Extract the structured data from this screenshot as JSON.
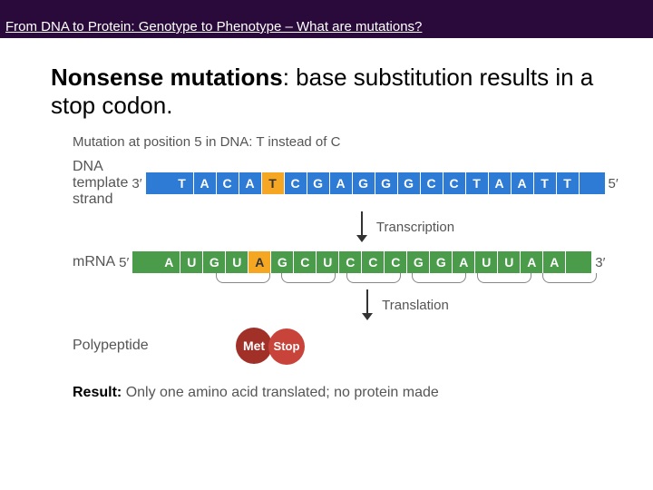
{
  "header": {
    "title": "From DNA to Protein: Genotype to Phenotype – What are mutations?"
  },
  "heading": {
    "bold": "Nonsense mutations",
    "rest": ": base substitution results in a stop codon."
  },
  "diagram": {
    "mutation_note": "Mutation at position 5 in DNA: T instead of C",
    "dna": {
      "label_line1": "DNA",
      "label_line2": "template",
      "label_line3": "strand",
      "left": "3′",
      "right": "5′",
      "seq": [
        "T",
        "A",
        "C",
        "A",
        "T",
        "C",
        "G",
        "A",
        "G",
        "G",
        "G",
        "C",
        "C",
        "T",
        "A",
        "A",
        "T",
        "T"
      ],
      "mut_index": 4,
      "mut_base": "T",
      "bg": "#2e7bd6",
      "mut_bg": "#f5a623"
    },
    "step1": "Transcription",
    "mrna": {
      "label": "mRNA",
      "left": "5′",
      "right": "3′",
      "seq": [
        "A",
        "U",
        "G",
        "U",
        "A",
        "G",
        "C",
        "U",
        "C",
        "C",
        "C",
        "G",
        "G",
        "A",
        "U",
        "U",
        "A",
        "A"
      ],
      "mut_index": 4,
      "mut_base": "A",
      "bg": "#4a9c4a",
      "mut_bg": "#f5a623",
      "codons": 6
    },
    "step2": "Translation",
    "polypeptide": {
      "label": "Polypeptide",
      "units": [
        {
          "text": "Met",
          "color": "#a03028"
        },
        {
          "text": "Stop",
          "color": "#c8443a"
        }
      ]
    },
    "result": {
      "label": "Result:",
      "text": "Only one amino acid translated; no protein made"
    }
  }
}
